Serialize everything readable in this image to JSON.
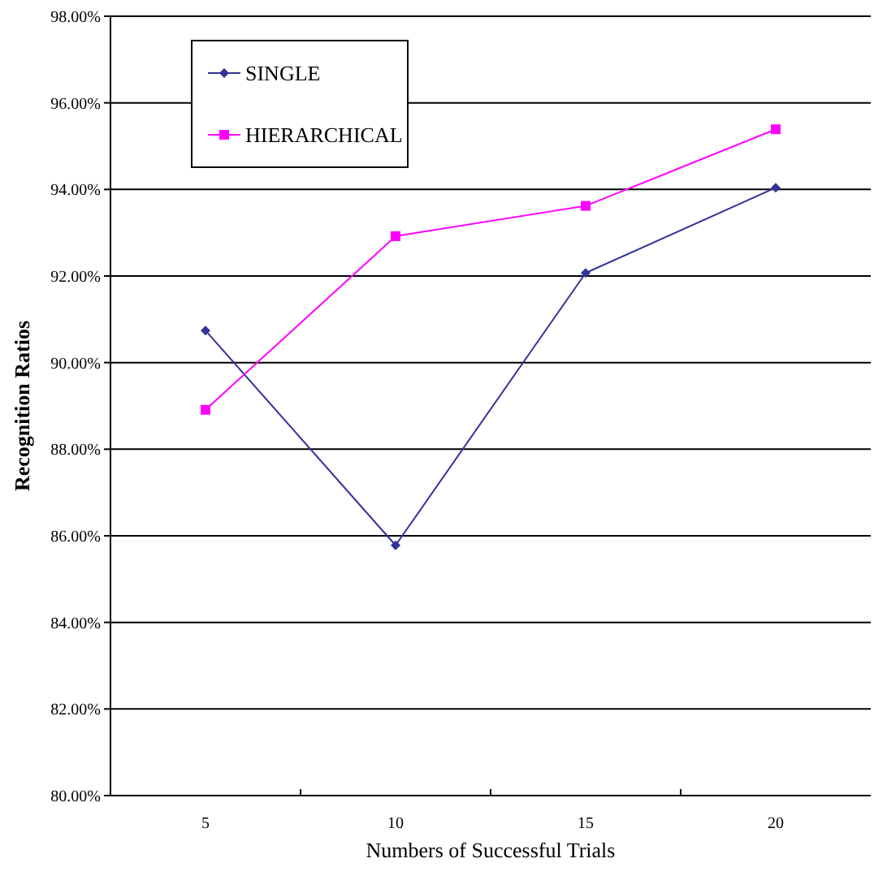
{
  "chart_data": {
    "type": "line",
    "xlabel": "Numbers of Successful Trials",
    "ylabel": "Recognition Ratios",
    "categories": [
      "5",
      "10",
      "15",
      "20"
    ],
    "series": [
      {
        "name": "SINGLE",
        "color": "#333399",
        "values": [
          90.74,
          85.78,
          92.07,
          94.04
        ],
        "marker": "diamond"
      },
      {
        "name": "HIERARCHICAL",
        "color": "#ff00ff",
        "values": [
          88.91,
          92.92,
          93.62,
          95.39
        ],
        "marker": "square"
      }
    ],
    "ylim": [
      80,
      98
    ],
    "yticks": [
      {
        "value": 80,
        "label": "80.00%"
      },
      {
        "value": 82,
        "label": "82.00%"
      },
      {
        "value": 84,
        "label": "84.00%"
      },
      {
        "value": 86,
        "label": "86.00%"
      },
      {
        "value": 88,
        "label": "88.00%"
      },
      {
        "value": 90,
        "label": "90.00%"
      },
      {
        "value": 92,
        "label": "92.00%"
      },
      {
        "value": 94,
        "label": "94.00%"
      },
      {
        "value": 96,
        "label": "96.00%"
      },
      {
        "value": 98,
        "label": "98.00%"
      }
    ],
    "grid": "y",
    "legend": "top left",
    "line_style": "solid"
  }
}
